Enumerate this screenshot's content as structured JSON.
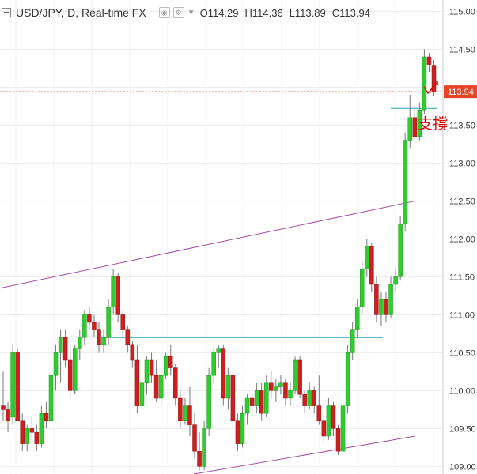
{
  "header": {
    "symbol": "USD/JPY, D, Real-time FX",
    "open_label": "O",
    "open_value": "114.29",
    "high_label": "H",
    "high_value": "114.36",
    "low_label": "L",
    "low_value": "113.89",
    "close_label": "C",
    "close_value": "113.94"
  },
  "annotation": {
    "text": "支撐",
    "color": "#e00000"
  },
  "colors": {
    "up": "#2ecc2e",
    "down": "#cc1f1f",
    "wick": "#777777",
    "channel": "#a64ca6",
    "support": "#26a0b0",
    "price_line": "#e8442a"
  },
  "chart_data": {
    "type": "candlestick",
    "ylim": [
      108.9,
      115.15
    ],
    "yticks": [
      "115.00",
      "114.50",
      "114.00",
      "113.50",
      "113.00",
      "112.50",
      "112.00",
      "111.50",
      "111.00",
      "110.50",
      "110.00",
      "109.50",
      "109.00"
    ],
    "last_price": "113.94",
    "candles": [
      [
        109.8,
        110.25,
        109.6,
        109.75
      ],
      [
        109.75,
        109.85,
        109.45,
        109.6
      ],
      [
        109.65,
        110.6,
        109.55,
        110.5
      ],
      [
        110.5,
        110.55,
        109.6,
        109.6
      ],
      [
        109.6,
        109.7,
        109.2,
        109.3
      ],
      [
        109.3,
        109.55,
        109.2,
        109.5
      ],
      [
        109.5,
        109.65,
        109.35,
        109.45
      ],
      [
        109.45,
        109.55,
        109.2,
        109.3
      ],
      [
        109.3,
        109.8,
        109.25,
        109.7
      ],
      [
        109.7,
        109.85,
        109.5,
        109.6
      ],
      [
        109.6,
        110.3,
        109.55,
        110.2
      ],
      [
        110.2,
        110.6,
        110.0,
        110.5
      ],
      [
        110.5,
        110.8,
        110.1,
        110.7
      ],
      [
        110.7,
        110.8,
        110.3,
        110.4
      ],
      [
        110.4,
        110.6,
        109.9,
        110.0
      ],
      [
        110.0,
        110.6,
        109.95,
        110.55
      ],
      [
        110.55,
        110.8,
        110.4,
        110.7
      ],
      [
        110.7,
        111.05,
        110.6,
        111.0
      ],
      [
        111.0,
        111.1,
        110.8,
        110.9
      ],
      [
        110.9,
        111.0,
        110.7,
        110.8
      ],
      [
        110.8,
        110.9,
        110.5,
        110.6
      ],
      [
        110.6,
        110.8,
        110.5,
        110.7
      ],
      [
        110.7,
        111.2,
        110.6,
        111.1
      ],
      [
        111.1,
        111.6,
        111.0,
        111.5
      ],
      [
        111.5,
        111.55,
        110.9,
        111.0
      ],
      [
        111.0,
        111.05,
        110.7,
        110.8
      ],
      [
        110.8,
        110.85,
        110.5,
        110.6
      ],
      [
        110.6,
        110.65,
        110.3,
        110.4
      ],
      [
        110.4,
        110.6,
        109.7,
        109.8
      ],
      [
        109.8,
        110.2,
        109.75,
        110.1
      ],
      [
        110.1,
        110.45,
        109.95,
        110.4
      ],
      [
        110.4,
        110.5,
        110.1,
        110.2
      ],
      [
        110.2,
        110.4,
        109.85,
        109.9
      ],
      [
        109.9,
        110.3,
        109.8,
        110.2
      ],
      [
        110.2,
        110.5,
        110.15,
        110.45
      ],
      [
        110.45,
        110.6,
        110.2,
        110.3
      ],
      [
        110.3,
        110.35,
        109.8,
        109.9
      ],
      [
        109.9,
        110.0,
        109.5,
        109.6
      ],
      [
        109.6,
        109.9,
        109.55,
        109.8
      ],
      [
        109.8,
        110.05,
        109.4,
        109.55
      ],
      [
        109.55,
        109.7,
        109.1,
        109.2
      ],
      [
        109.2,
        109.45,
        108.95,
        109.0
      ],
      [
        109.0,
        109.6,
        108.95,
        109.5
      ],
      [
        109.5,
        110.3,
        109.4,
        110.2
      ],
      [
        110.2,
        110.55,
        110.1,
        110.5
      ],
      [
        110.5,
        110.6,
        110.3,
        110.55
      ],
      [
        110.55,
        110.6,
        109.8,
        109.9
      ],
      [
        109.9,
        110.3,
        109.75,
        110.2
      ],
      [
        110.2,
        110.25,
        109.5,
        109.6
      ],
      [
        109.6,
        109.7,
        109.2,
        109.3
      ],
      [
        109.3,
        109.8,
        109.25,
        109.7
      ],
      [
        109.7,
        109.95,
        109.55,
        109.9
      ],
      [
        109.9,
        109.95,
        109.65,
        109.8
      ],
      [
        109.8,
        110.1,
        109.7,
        110.0
      ],
      [
        110.0,
        110.1,
        109.6,
        109.7
      ],
      [
        109.7,
        110.2,
        109.65,
        110.1
      ],
      [
        110.1,
        110.25,
        109.9,
        110.0
      ],
      [
        110.0,
        110.15,
        109.85,
        110.05
      ],
      [
        110.05,
        110.2,
        109.95,
        110.1
      ],
      [
        110.1,
        110.15,
        109.8,
        109.9
      ],
      [
        109.9,
        110.1,
        109.8,
        110.0
      ],
      [
        110.0,
        110.45,
        109.95,
        110.4
      ],
      [
        110.4,
        110.45,
        109.9,
        109.95
      ],
      [
        109.95,
        110.0,
        109.7,
        109.8
      ],
      [
        109.8,
        110.1,
        109.75,
        110.0
      ],
      [
        110.0,
        110.05,
        109.7,
        109.8
      ],
      [
        109.8,
        110.2,
        109.55,
        109.6
      ],
      [
        109.6,
        109.7,
        109.3,
        109.4
      ],
      [
        109.4,
        109.9,
        109.35,
        109.8
      ],
      [
        109.8,
        109.85,
        109.4,
        109.5
      ],
      [
        109.5,
        109.55,
        109.15,
        109.2
      ],
      [
        109.2,
        109.9,
        109.15,
        109.8
      ],
      [
        109.8,
        110.6,
        109.7,
        110.5
      ],
      [
        110.5,
        110.9,
        110.4,
        110.8
      ],
      [
        110.8,
        111.2,
        110.7,
        111.1
      ],
      [
        111.1,
        111.7,
        111.0,
        111.6
      ],
      [
        111.6,
        112.0,
        111.5,
        111.9
      ],
      [
        111.9,
        111.95,
        111.3,
        111.4
      ],
      [
        111.4,
        111.5,
        110.9,
        111.0
      ],
      [
        111.0,
        111.3,
        110.85,
        111.2
      ],
      [
        111.2,
        111.3,
        110.9,
        111.0
      ],
      [
        111.0,
        111.5,
        110.95,
        111.4
      ],
      [
        111.4,
        111.6,
        111.3,
        111.5
      ],
      [
        111.5,
        112.3,
        111.45,
        112.2
      ],
      [
        112.2,
        113.4,
        112.1,
        113.3
      ],
      [
        113.3,
        113.9,
        113.2,
        113.6
      ],
      [
        113.6,
        113.75,
        113.3,
        113.35
      ],
      [
        113.35,
        113.8,
        113.3,
        113.7
      ],
      [
        113.7,
        114.5,
        113.65,
        114.4
      ],
      [
        114.4,
        114.45,
        114.2,
        114.3
      ],
      [
        114.29,
        114.36,
        113.89,
        113.94
      ]
    ]
  }
}
